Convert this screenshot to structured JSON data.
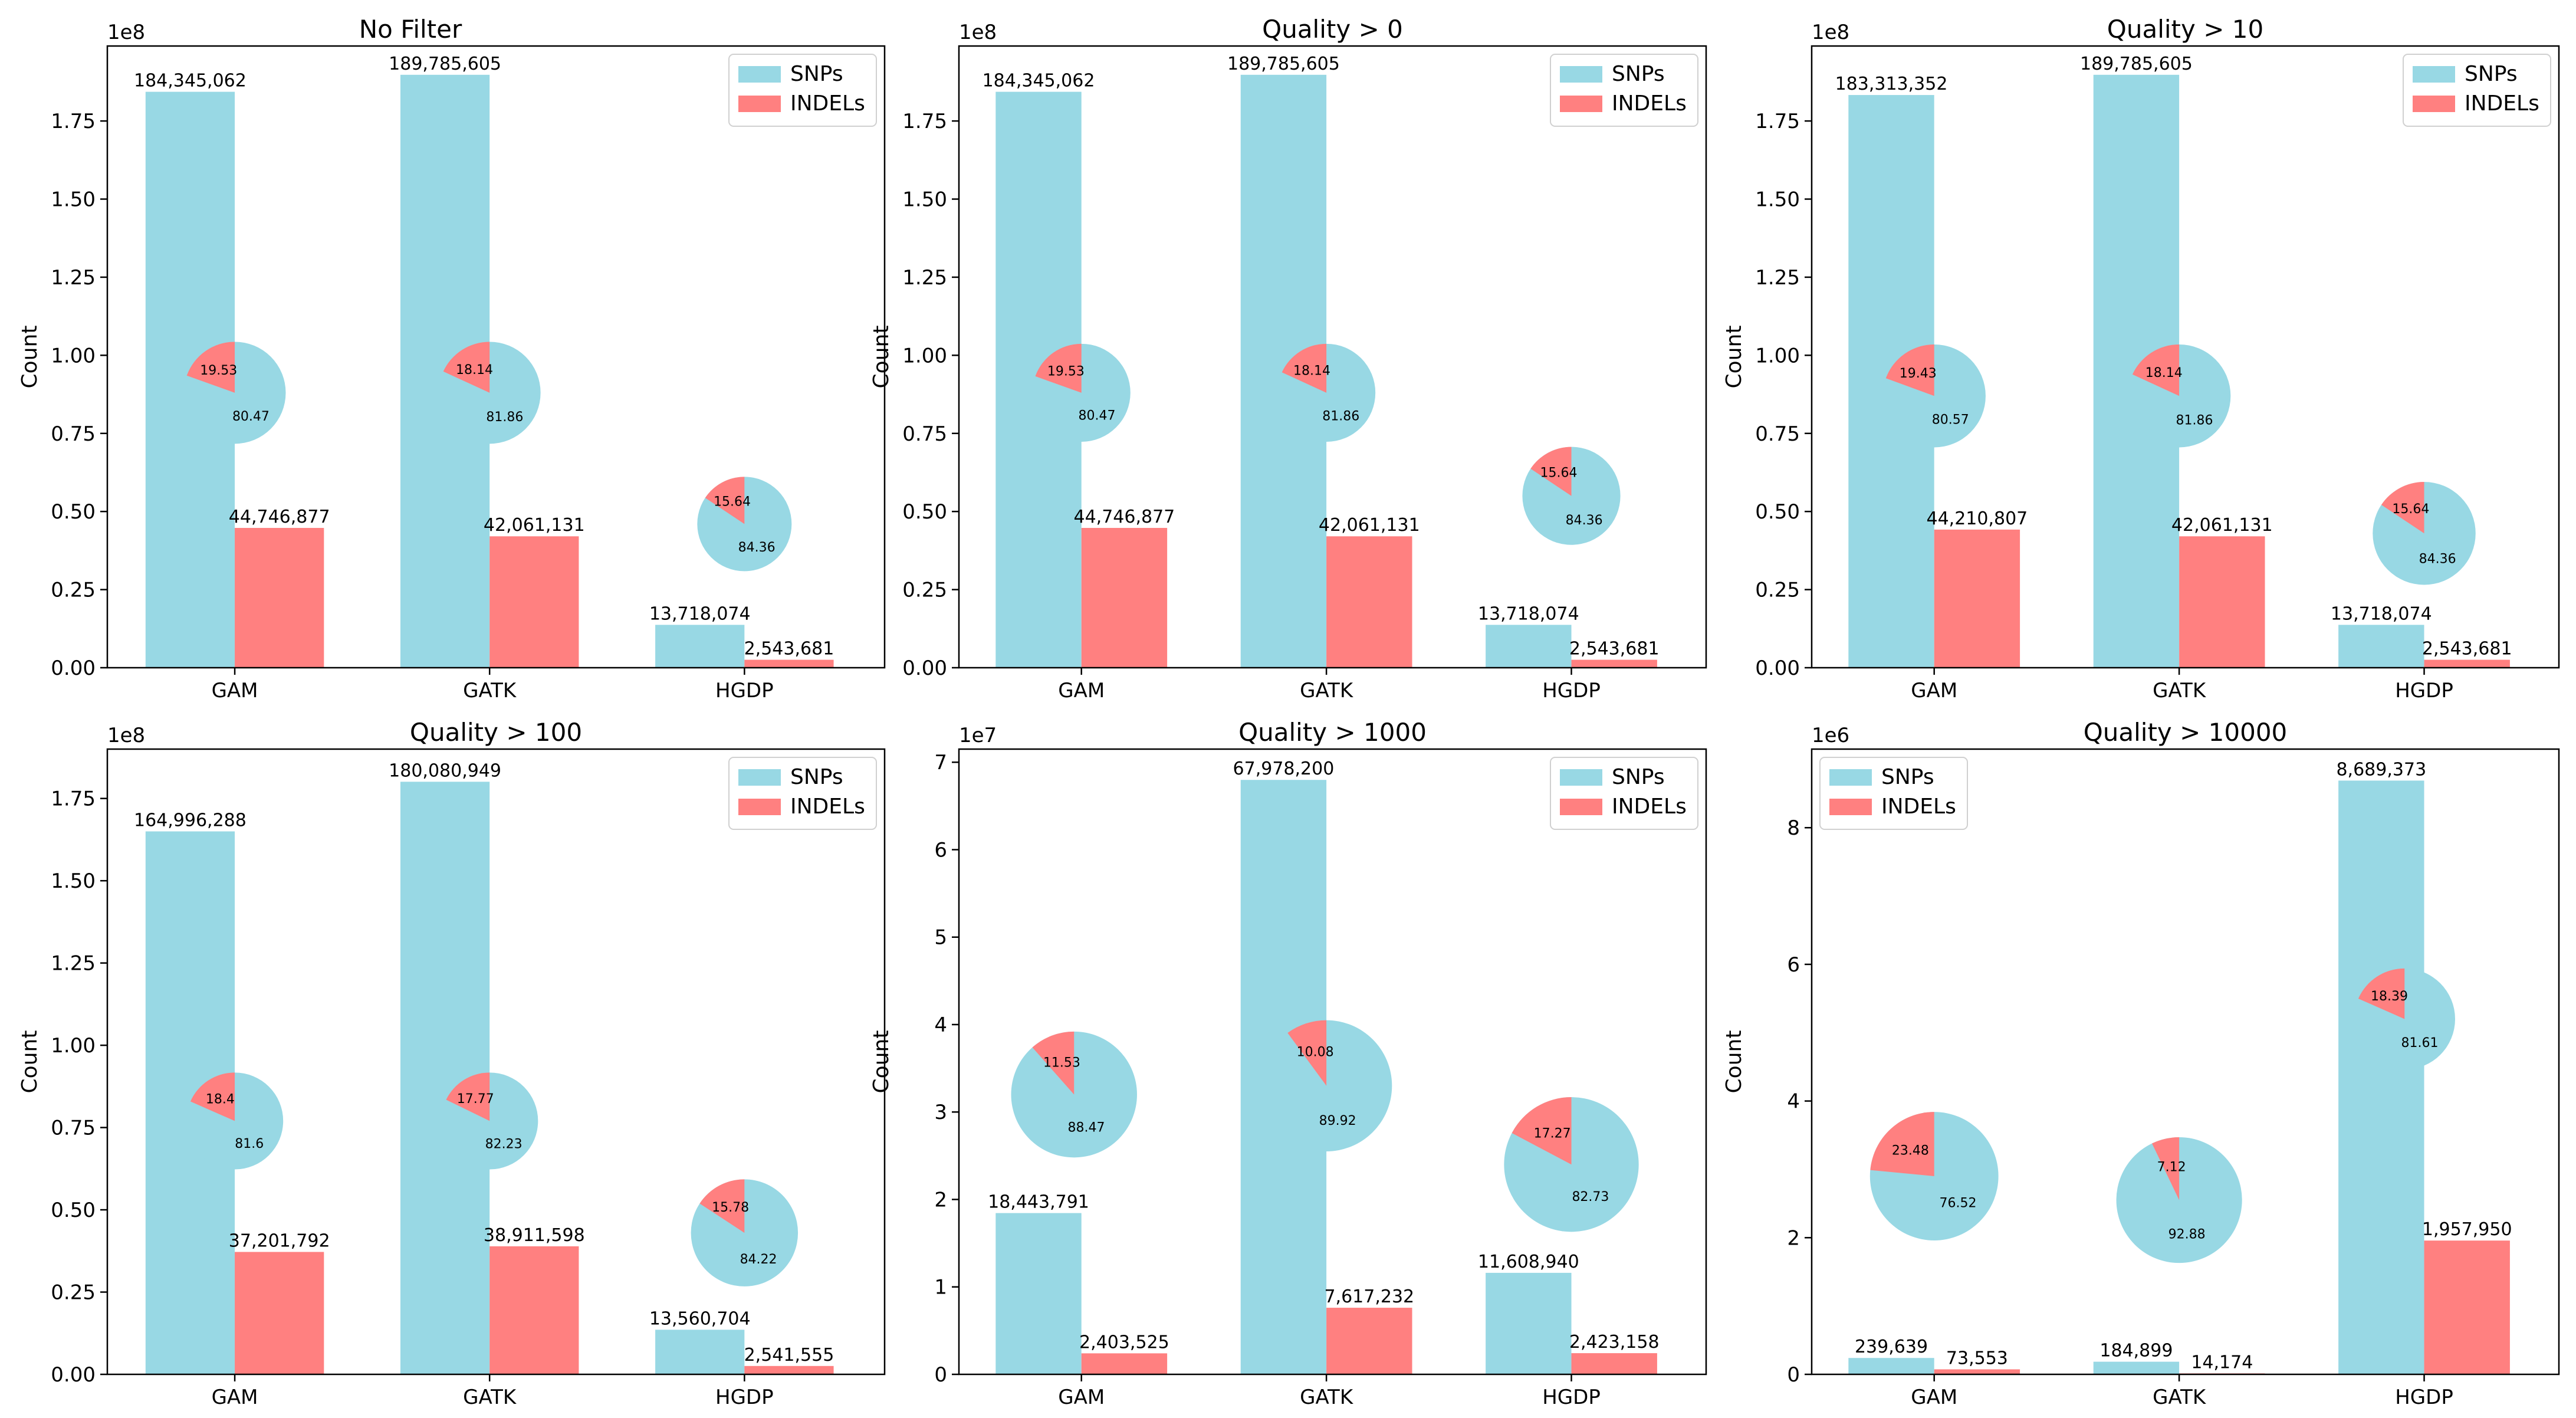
{
  "chart_data": [
    {
      "type": "bar",
      "title": "No Filter",
      "xlabel": "",
      "ylabel": "Count",
      "offset_label": "1e8",
      "scale": 100000000,
      "ylim": [
        0,
        1.99
      ],
      "yticks": [
        "0.00",
        "0.25",
        "0.50",
        "0.75",
        "1.00",
        "1.25",
        "1.50",
        "1.75"
      ],
      "legend_position": "top-right",
      "categories": [
        "GAM",
        "GATK",
        "HGDP"
      ],
      "series": [
        {
          "name": "SNPs",
          "values": [
            184345062,
            189785605,
            13718074
          ],
          "labels": [
            "184,345,062",
            "189,785,605",
            "13,718,074"
          ]
        },
        {
          "name": "INDELs",
          "values": [
            44746877,
            42061131,
            2543681
          ],
          "labels": [
            "44,746,877",
            "42,061,131",
            "2,543,681"
          ]
        }
      ],
      "pies": [
        {
          "category": "GAM",
          "snp_pct": "80.47",
          "indel_pct": "19.53",
          "center": [
            1.0,
            0.88
          ],
          "radius": 0.2
        },
        {
          "category": "GATK",
          "snp_pct": "81.86",
          "indel_pct": "18.14",
          "center": [
            2.0,
            0.88
          ],
          "radius": 0.2
        },
        {
          "category": "HGDP",
          "snp_pct": "84.36",
          "indel_pct": "15.64",
          "center": [
            3.0,
            0.46
          ],
          "radius": 0.18
        }
      ]
    },
    {
      "type": "bar",
      "title": "Quality > 0",
      "xlabel": "",
      "ylabel": "Count",
      "offset_label": "1e8",
      "scale": 100000000,
      "ylim": [
        0,
        1.99
      ],
      "yticks": [
        "0.00",
        "0.25",
        "0.50",
        "0.75",
        "1.00",
        "1.25",
        "1.50",
        "1.75"
      ],
      "legend_position": "top-right",
      "categories": [
        "GAM",
        "GATK",
        "HGDP"
      ],
      "series": [
        {
          "name": "SNPs",
          "values": [
            184345062,
            189785605,
            13718074
          ],
          "labels": [
            "184,345,062",
            "189,785,605",
            "13,718,074"
          ]
        },
        {
          "name": "INDELs",
          "values": [
            44746877,
            42061131,
            2543681
          ],
          "labels": [
            "44,746,877",
            "42,061,131",
            "2,543,681"
          ]
        }
      ],
      "pies": [
        {
          "category": "GAM",
          "snp_pct": "80.47",
          "indel_pct": "19.53",
          "center": [
            1.0,
            0.88
          ],
          "radius": 0.2
        },
        {
          "category": "GATK",
          "snp_pct": "81.86",
          "indel_pct": "18.14",
          "center": [
            2.0,
            0.88
          ],
          "radius": 0.2
        },
        {
          "category": "HGDP",
          "snp_pct": "84.36",
          "indel_pct": "15.64",
          "center": [
            3.0,
            0.55
          ],
          "radius": 0.2
        }
      ]
    },
    {
      "type": "bar",
      "title": "Quality > 10",
      "xlabel": "",
      "ylabel": "Count",
      "offset_label": "1e8",
      "scale": 100000000,
      "ylim": [
        0,
        1.99
      ],
      "yticks": [
        "0.00",
        "0.25",
        "0.50",
        "0.75",
        "1.00",
        "1.25",
        "1.50",
        "1.75"
      ],
      "legend_position": "top-right",
      "categories": [
        "GAM",
        "GATK",
        "HGDP"
      ],
      "series": [
        {
          "name": "SNPs",
          "values": [
            183313352,
            189785605,
            13718074
          ],
          "labels": [
            "183,313,352",
            "189,785,605",
            "13,718,074"
          ]
        },
        {
          "name": "INDELs",
          "values": [
            44210807,
            42061131,
            2543681
          ],
          "labels": [
            "44,210,807",
            "42,061,131",
            "2,543,681"
          ]
        }
      ],
      "pies": [
        {
          "category": "GAM",
          "snp_pct": "80.57",
          "indel_pct": "19.43",
          "center": [
            1.0,
            0.87
          ],
          "radius": 0.21
        },
        {
          "category": "GATK",
          "snp_pct": "81.86",
          "indel_pct": "18.14",
          "center": [
            2.0,
            0.87
          ],
          "radius": 0.21
        },
        {
          "category": "HGDP",
          "snp_pct": "84.36",
          "indel_pct": "15.64",
          "center": [
            3.0,
            0.43
          ],
          "radius": 0.21
        }
      ]
    },
    {
      "type": "bar",
      "title": "Quality > 100",
      "xlabel": "",
      "ylabel": "Count",
      "offset_label": "1e8",
      "scale": 100000000,
      "ylim": [
        0,
        1.9
      ],
      "yticks": [
        "0.00",
        "0.25",
        "0.50",
        "0.75",
        "1.00",
        "1.25",
        "1.50",
        "1.75"
      ],
      "legend_position": "top-right",
      "categories": [
        "GAM",
        "GATK",
        "HGDP"
      ],
      "series": [
        {
          "name": "SNPs",
          "values": [
            164996288,
            180080949,
            13560704
          ],
          "labels": [
            "164,996,288",
            "180,080,949",
            "13,560,704"
          ]
        },
        {
          "name": "INDELs",
          "values": [
            37201792,
            38911598,
            2541555
          ],
          "labels": [
            "37,201,792",
            "38,911,598",
            "2,541,555"
          ]
        }
      ],
      "pies": [
        {
          "category": "GAM",
          "snp_pct": "81.6",
          "indel_pct": "18.4",
          "center": [
            1.0,
            0.77
          ],
          "radius": 0.19
        },
        {
          "category": "GATK",
          "snp_pct": "82.23",
          "indel_pct": "17.77",
          "center": [
            2.0,
            0.77
          ],
          "radius": 0.19
        },
        {
          "category": "HGDP",
          "snp_pct": "84.22",
          "indel_pct": "15.78",
          "center": [
            3.0,
            0.43
          ],
          "radius": 0.21
        }
      ]
    },
    {
      "type": "bar",
      "title": "Quality > 1000",
      "xlabel": "",
      "ylabel": "Count",
      "offset_label": "1e7",
      "scale": 10000000,
      "ylim": [
        0,
        7.15
      ],
      "yticks": [
        "0",
        "1",
        "2",
        "3",
        "4",
        "5",
        "6",
        "7"
      ],
      "legend_position": "top-right",
      "categories": [
        "GAM",
        "GATK",
        "HGDP"
      ],
      "series": [
        {
          "name": "SNPs",
          "values": [
            18443791,
            67978200,
            11608940
          ],
          "labels": [
            "18,443,791",
            "67,978,200",
            "11,608,940"
          ]
        },
        {
          "name": "INDELs",
          "values": [
            2403525,
            7617232,
            2423158
          ],
          "labels": [
            "2,403,525",
            "7,617,232",
            "2,423,158"
          ]
        }
      ],
      "pies": [
        {
          "category": "GAM",
          "snp_pct": "88.47",
          "indel_pct": "11.53",
          "center": [
            0.97,
            3.2
          ],
          "radius": 0.72
        },
        {
          "category": "GATK",
          "snp_pct": "89.92",
          "indel_pct": "10.08",
          "center": [
            2.0,
            3.3
          ],
          "radius": 0.75
        },
        {
          "category": "HGDP",
          "snp_pct": "82.73",
          "indel_pct": "17.27",
          "center": [
            3.0,
            2.4
          ],
          "radius": 0.77
        }
      ]
    },
    {
      "type": "bar",
      "title": "Quality > 10000",
      "xlabel": "",
      "ylabel": "Count",
      "offset_label": "1e6",
      "scale": 1000000,
      "ylim": [
        0,
        9.15
      ],
      "yticks": [
        "0",
        "2",
        "4",
        "6",
        "8"
      ],
      "legend_position": "top-left",
      "categories": [
        "GAM",
        "GATK",
        "HGDP"
      ],
      "series": [
        {
          "name": "SNPs",
          "values": [
            239639,
            184899,
            8689373
          ],
          "labels": [
            "239,639",
            "184,899",
            "8,689,373"
          ]
        },
        {
          "name": "INDELs",
          "values": [
            73553,
            14174,
            1957950
          ],
          "labels": [
            "73,553",
            "14,174",
            "1,957,950"
          ]
        }
      ],
      "pies": [
        {
          "category": "GAM",
          "snp_pct": "76.52",
          "indel_pct": "23.48",
          "center": [
            1.0,
            2.9
          ],
          "radius": 0.94
        },
        {
          "category": "GATK",
          "snp_pct": "92.88",
          "indel_pct": "7.12",
          "center": [
            2.0,
            2.55
          ],
          "radius": 0.92
        },
        {
          "category": "HGDP",
          "snp_pct": "81.61",
          "indel_pct": "18.39",
          "center": [
            2.92,
            5.2
          ],
          "radius": 0.74
        }
      ]
    }
  ],
  "colors": {
    "snp": "#98d8e4",
    "indel": "#ff8080",
    "axis": "#000000",
    "legend_border": "#d0d0d0"
  }
}
